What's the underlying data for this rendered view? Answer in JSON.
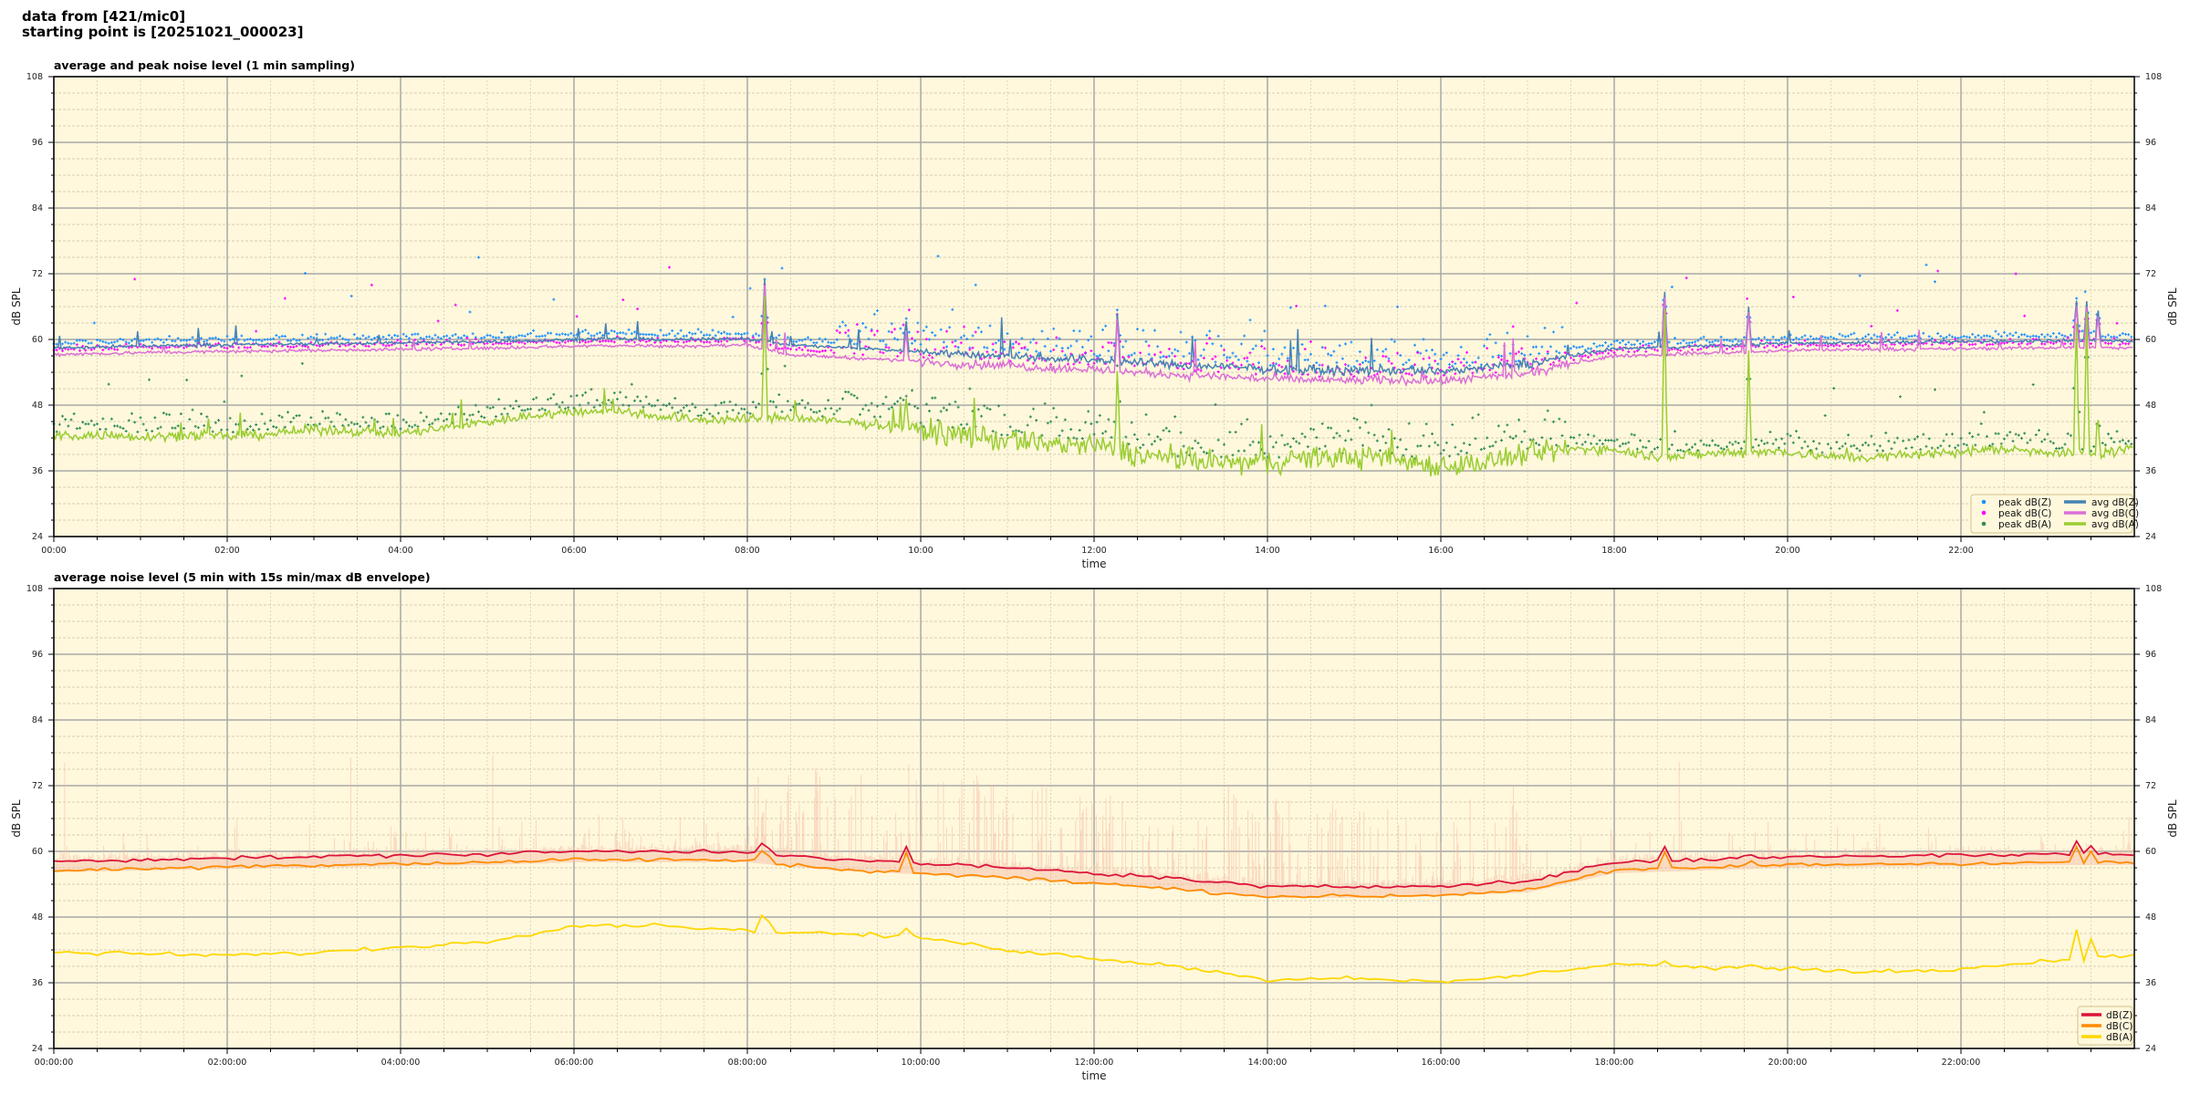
{
  "header": {
    "line1": "data from [421/mic0]",
    "line2": "starting point is [20251021_000023]"
  },
  "chart_data": [
    {
      "type": "line",
      "title": "average and peak noise level (1 min sampling)",
      "xlabel": "time",
      "ylabel": "dB SPL",
      "ylim": [
        24,
        108
      ],
      "yticks": [
        "24",
        "36",
        "48",
        "60",
        "72",
        "84",
        "96",
        "108"
      ],
      "xlim_hours": [
        0,
        24
      ],
      "xticks": [
        "00:00",
        "02:00",
        "04:00",
        "06:00",
        "08:00",
        "10:00",
        "12:00",
        "14:00",
        "16:00",
        "18:00",
        "20:00",
        "22:00"
      ],
      "grid": true,
      "legend_position": "lower-right",
      "background": "#fff8dc",
      "x_hours_step": 0.5,
      "series": [
        {
          "name": "avg dB(Z)",
          "kind": "line",
          "color": "#4682b4",
          "values": [
            58.5,
            58.6,
            58.8,
            58.9,
            59.0,
            59.1,
            59.2,
            59.3,
            59.4,
            59.5,
            59.6,
            59.8,
            60.0,
            60.1,
            60.0,
            60.0,
            60.2,
            59.0,
            58.6,
            58.2,
            57.8,
            57.3,
            57.0,
            56.6,
            56.3,
            55.8,
            55.3,
            55.0,
            54.6,
            54.4,
            54.3,
            54.4,
            54.2,
            54.8,
            55.5,
            57.0,
            58.3,
            58.5,
            58.8,
            59.0,
            59.3,
            59.4,
            59.5,
            59.5,
            59.6,
            59.7,
            59.8,
            59.8,
            59.7
          ]
        },
        {
          "name": "avg dB(C)",
          "kind": "line",
          "color": "#da70d6",
          "values": [
            57.3,
            57.4,
            57.6,
            57.7,
            57.8,
            57.9,
            58.0,
            58.1,
            58.2,
            58.3,
            58.4,
            58.6,
            58.8,
            58.9,
            58.8,
            58.8,
            59.0,
            57.2,
            56.8,
            56.4,
            56.0,
            55.5,
            55.2,
            54.8,
            54.5,
            54.0,
            53.5,
            53.2,
            52.8,
            52.6,
            52.5,
            52.6,
            52.4,
            53.0,
            53.7,
            55.5,
            57.0,
            57.2,
            57.5,
            57.7,
            58.0,
            58.1,
            58.2,
            58.2,
            58.3,
            58.4,
            58.5,
            58.5,
            58.4
          ]
        },
        {
          "name": "avg dB(A)",
          "kind": "line",
          "color": "#9acd32",
          "values": [
            42.5,
            42.5,
            42.3,
            42.5,
            42.3,
            42.8,
            43.5,
            43.3,
            42.8,
            43.8,
            45.0,
            46.0,
            46.8,
            47.0,
            46.0,
            45.3,
            45.5,
            45.8,
            45.0,
            44.5,
            43.5,
            42.5,
            41.5,
            41.0,
            40.5,
            39.0,
            38.0,
            37.5,
            37.5,
            38.5,
            38.5,
            38.0,
            37.0,
            37.5,
            39.0,
            40.0,
            40.0,
            38.5,
            39.0,
            39.5,
            39.5,
            38.5,
            38.5,
            39.0,
            39.5,
            40.0,
            39.5,
            39.0,
            40.0
          ]
        },
        {
          "name": "peak dB(Z)",
          "kind": "scatter",
          "color": "#1e90ff"
        },
        {
          "name": "peak dB(C)",
          "kind": "scatter",
          "color": "#ff00ff"
        },
        {
          "name": "peak dB(A)",
          "kind": "scatter",
          "color": "#2e8b57"
        }
      ],
      "spikes": [
        {
          "hour": 8.2,
          "Z": 71,
          "C": 70,
          "A": 68
        },
        {
          "hour": 9.83,
          "Z": 64,
          "C": 62,
          "A": 50
        },
        {
          "hour": 12.27,
          "Z": 66,
          "C": 65,
          "A": 56
        },
        {
          "hour": 18.58,
          "Z": 70,
          "C": 69,
          "A": 69
        },
        {
          "hour": 19.55,
          "Z": 66,
          "C": 65,
          "A": 58
        },
        {
          "hour": 23.33,
          "Z": 68,
          "C": 67,
          "A": 66
        },
        {
          "hour": 23.45,
          "Z": 67,
          "C": 66,
          "A": 65
        },
        {
          "hour": 23.58,
          "Z": 66,
          "C": 65,
          "A": 46
        }
      ]
    },
    {
      "type": "line",
      "title": "average noise level (5 min with 15s min/max dB envelope)",
      "xlabel": "time",
      "ylabel": "dB SPL",
      "ylim": [
        24,
        108
      ],
      "yticks": [
        "24",
        "36",
        "48",
        "60",
        "72",
        "84",
        "96",
        "108"
      ],
      "xlim_hours": [
        0,
        24
      ],
      "xticks": [
        "00:00:00",
        "02:00:00",
        "04:00:00",
        "06:00:00",
        "08:00:00",
        "10:00:00",
        "12:00:00",
        "14:00:00",
        "16:00:00",
        "18:00:00",
        "20:00:00",
        "22:00:00"
      ],
      "grid": true,
      "legend_position": "lower-right",
      "background": "#fff8dc",
      "envelope_color": "#f4b9a4",
      "x_hours_step": 1,
      "series": [
        {
          "name": "dB(Z)",
          "color": "#dc143c",
          "values": [
            58.2,
            58.5,
            58.8,
            59.0,
            59.3,
            59.5,
            60.0,
            60.0,
            60.0,
            58.5,
            57.8,
            57.0,
            56.0,
            55.0,
            53.5,
            53.5,
            53.8,
            54.5,
            58.0,
            58.5,
            59.0,
            59.2,
            59.3,
            59.5,
            59.5
          ]
        },
        {
          "name": "dB(C)",
          "color": "#ff8c00",
          "values": [
            56.5,
            56.8,
            57.2,
            57.5,
            57.8,
            58.0,
            58.5,
            58.5,
            58.3,
            56.8,
            56.0,
            55.2,
            54.2,
            53.0,
            51.8,
            51.8,
            52.0,
            53.0,
            56.5,
            57.0,
            57.5,
            57.7,
            57.8,
            58.0,
            58.0
          ]
        },
        {
          "name": "dB(A)",
          "color": "#ffd700",
          "values": [
            41.5,
            41.3,
            41.0,
            41.5,
            42.5,
            43.5,
            46.5,
            46.5,
            45.5,
            45.0,
            44.3,
            42.0,
            40.5,
            39.0,
            36.5,
            37.0,
            36.0,
            37.5,
            39.5,
            38.8,
            38.5,
            38.0,
            38.5,
            40.0,
            41.0
          ]
        }
      ],
      "spikes": [
        {
          "hour": 8.2,
          "Z": 63,
          "C": 62,
          "A": 51
        },
        {
          "hour": 9.83,
          "Z": 61,
          "C": 60,
          "A": 46
        },
        {
          "hour": 18.58,
          "Z": 61,
          "C": 60,
          "A": 40
        },
        {
          "hour": 19.55,
          "Z": 60,
          "C": 59,
          "A": 40
        },
        {
          "hour": 23.33,
          "Z": 62,
          "C": 61,
          "A": 46
        },
        {
          "hour": 23.5,
          "Z": 61,
          "C": 60,
          "A": 44
        }
      ]
    }
  ]
}
